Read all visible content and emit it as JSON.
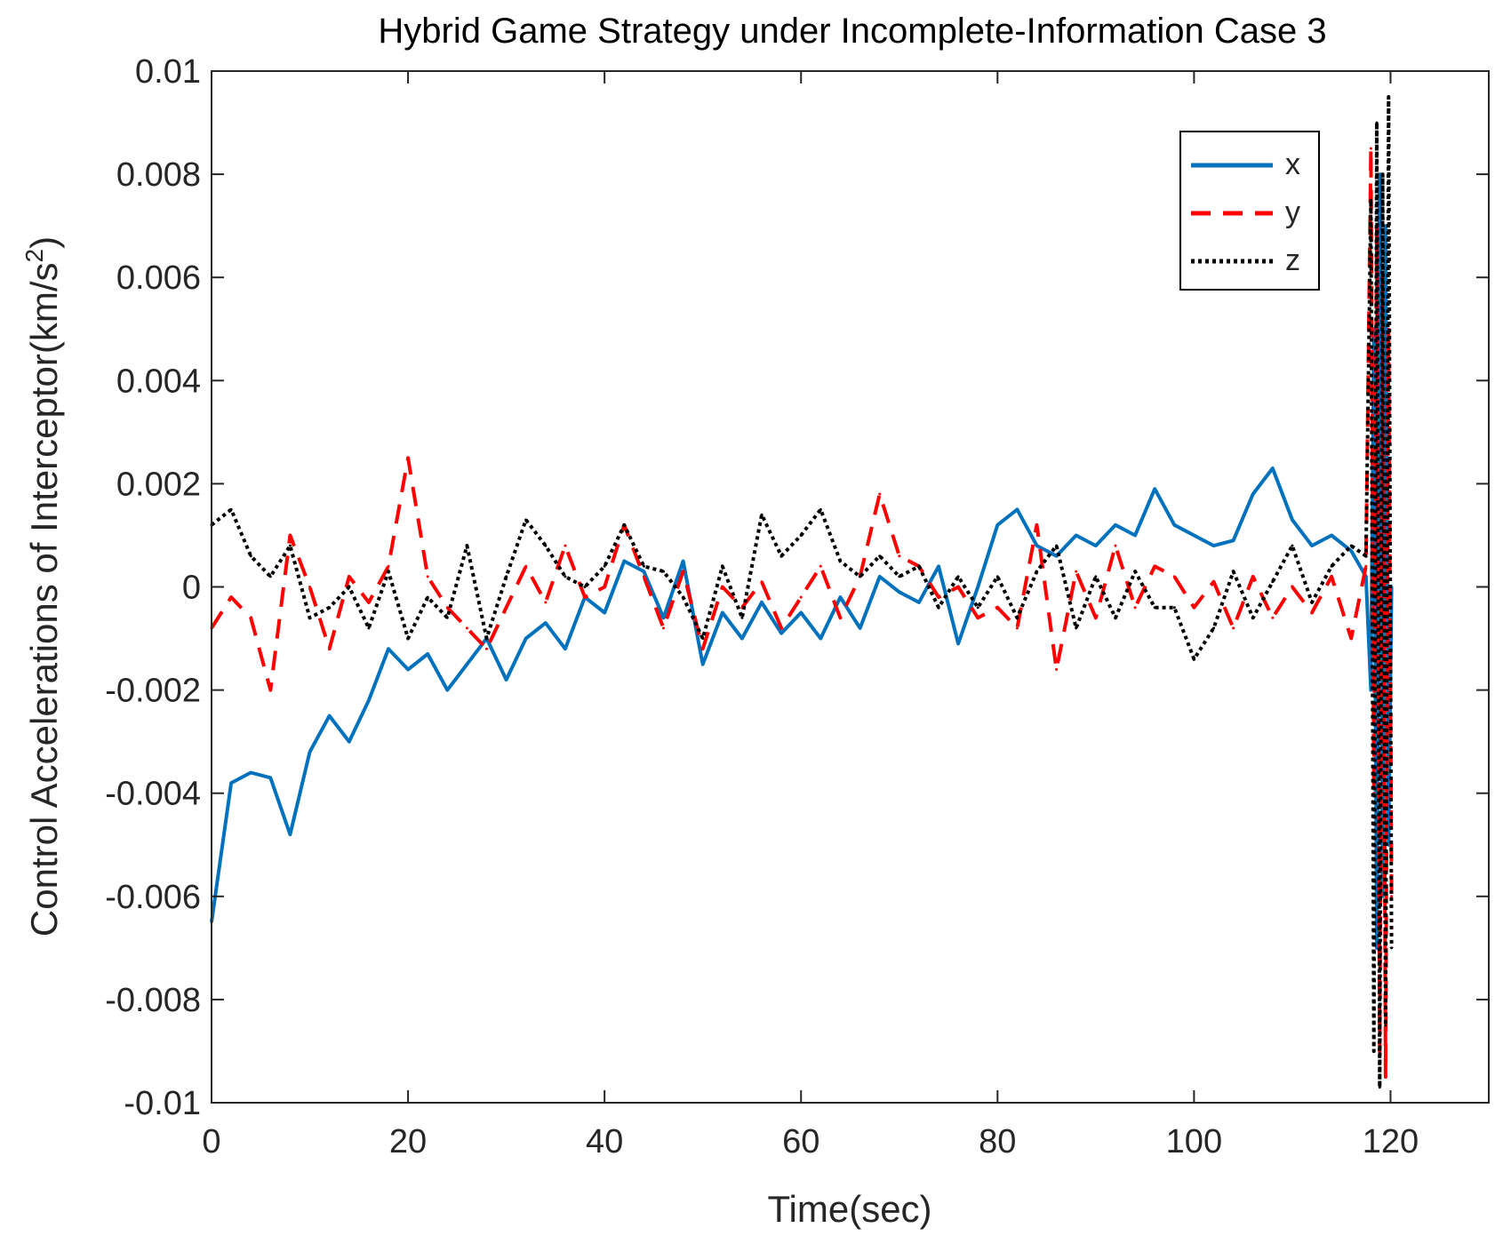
{
  "chart_data": {
    "type": "line",
    "title": "Hybrid Game Strategy under Incomplete-Information Case 3",
    "xlabel": "Time(sec)",
    "ylabel_main": "Control Accelerations of Interceptor(km/s",
    "ylabel_sup": "2",
    "ylabel_close": ")",
    "xlim": [
      0,
      130
    ],
    "ylim": [
      -0.01,
      0.01
    ],
    "xticks": [
      0,
      20,
      40,
      60,
      80,
      100,
      120
    ],
    "xtick_labels": [
      "0",
      "20",
      "40",
      "60",
      "80",
      "100",
      "120"
    ],
    "yticks": [
      -0.01,
      -0.008,
      -0.006,
      -0.004,
      -0.002,
      0,
      0.002,
      0.004,
      0.006,
      0.008,
      0.01
    ],
    "ytick_labels": [
      "-0.01",
      "-0.008",
      "-0.006",
      "-0.004",
      "-0.002",
      "0",
      "0.002",
      "0.004",
      "0.006",
      "0.008",
      "0.01"
    ],
    "legend_location": "top-right",
    "x": [
      0,
      2,
      4,
      6,
      8,
      10,
      12,
      14,
      16,
      18,
      20,
      22,
      24,
      26,
      28,
      30,
      32,
      34,
      36,
      38,
      40,
      42,
      44,
      46,
      48,
      50,
      52,
      54,
      56,
      58,
      60,
      62,
      64,
      66,
      68,
      70,
      72,
      74,
      76,
      78,
      80,
      82,
      84,
      86,
      88,
      90,
      92,
      94,
      96,
      98,
      100,
      102,
      104,
      106,
      108,
      110,
      112,
      114,
      116,
      117.5,
      118,
      118.3,
      118.6,
      118.9,
      119.2,
      119.5,
      119.8,
      120.1
    ],
    "series": [
      {
        "name": "x",
        "color": "#0072BD",
        "dash": "solid",
        "values": [
          -0.0065,
          -0.0038,
          -0.0036,
          -0.0037,
          -0.0048,
          -0.0032,
          -0.0025,
          -0.003,
          -0.0022,
          -0.0012,
          -0.0016,
          -0.0013,
          -0.002,
          -0.0015,
          -0.001,
          -0.0018,
          -0.001,
          -0.0007,
          -0.0012,
          -0.0002,
          -0.0005,
          0.0005,
          0.0003,
          -0.0006,
          0.0005,
          -0.0015,
          -0.0005,
          -0.001,
          -0.0003,
          -0.0009,
          -0.0005,
          -0.001,
          -0.0002,
          -0.0008,
          0.0002,
          -0.0001,
          -0.0003,
          0.0004,
          -0.0011,
          0.0,
          0.0012,
          0.0015,
          0.0008,
          0.0006,
          0.001,
          0.0008,
          0.0012,
          0.001,
          0.0019,
          0.0012,
          0.001,
          0.0008,
          0.0009,
          0.0018,
          0.0023,
          0.0013,
          0.0008,
          0.001,
          0.0007,
          0.0002,
          -0.002,
          0.005,
          -0.007,
          0.008,
          -0.006,
          0.007,
          -0.005,
          0.0
        ]
      },
      {
        "name": "y",
        "color": "#FF0000",
        "dash": "dashed",
        "values": [
          -0.0008,
          -0.0002,
          -0.0006,
          -0.002,
          0.001,
          0.0,
          -0.0012,
          0.0002,
          -0.0003,
          0.0004,
          0.0025,
          0.0002,
          -0.0004,
          -0.0008,
          -0.0012,
          -0.0004,
          0.0004,
          -0.0003,
          0.0008,
          -0.0002,
          0.0,
          0.0012,
          0.0002,
          -0.0008,
          0.0003,
          -0.0012,
          0.0,
          -0.0004,
          0.0001,
          -0.0008,
          -0.0002,
          0.0004,
          -0.0006,
          0.0002,
          0.0018,
          0.0006,
          0.0004,
          -0.0002,
          0.0,
          -0.0006,
          -0.0004,
          -0.0008,
          0.0012,
          -0.0016,
          0.0003,
          -0.0006,
          0.0008,
          -0.0004,
          0.0004,
          0.0002,
          -0.0004,
          0.0001,
          -0.0008,
          0.0002,
          -0.0006,
          0.0,
          -0.0005,
          0.0002,
          -0.001,
          0.0004,
          0.0085,
          -0.004,
          0.007,
          -0.009,
          0.006,
          -0.0095,
          0.005,
          -0.006
        ]
      },
      {
        "name": "z",
        "color": "#000000",
        "dash": "dotted",
        "values": [
          0.0012,
          0.0015,
          0.0006,
          0.0002,
          0.0008,
          -0.0006,
          -0.0004,
          0.0,
          -0.0008,
          0.0003,
          -0.001,
          -0.0002,
          -0.0006,
          0.0008,
          -0.001,
          0.0002,
          0.0013,
          0.0008,
          0.0002,
          0.0,
          0.0004,
          0.0012,
          0.0004,
          0.0003,
          -0.0002,
          -0.001,
          0.0004,
          -0.0006,
          0.0014,
          0.0006,
          0.001,
          0.0015,
          0.0005,
          0.0002,
          0.0006,
          0.0002,
          0.0004,
          -0.0004,
          0.0002,
          -0.0004,
          0.0002,
          -0.0006,
          0.0003,
          0.0008,
          -0.0008,
          0.0002,
          -0.0006,
          0.0003,
          -0.0004,
          -0.0004,
          -0.0014,
          -0.0008,
          0.0003,
          -0.0006,
          0.0001,
          0.0008,
          -0.0003,
          0.0004,
          0.0008,
          0.0006,
          0.0075,
          -0.009,
          0.009,
          -0.0097,
          0.008,
          -0.0085,
          0.0095,
          -0.007
        ]
      }
    ]
  },
  "legend": {
    "items": [
      {
        "label": "x",
        "color": "#0072BD",
        "dash": "solid"
      },
      {
        "label": "y",
        "color": "#FF0000",
        "dash": "dashed"
      },
      {
        "label": "z",
        "color": "#000000",
        "dash": "dotted"
      }
    ]
  }
}
